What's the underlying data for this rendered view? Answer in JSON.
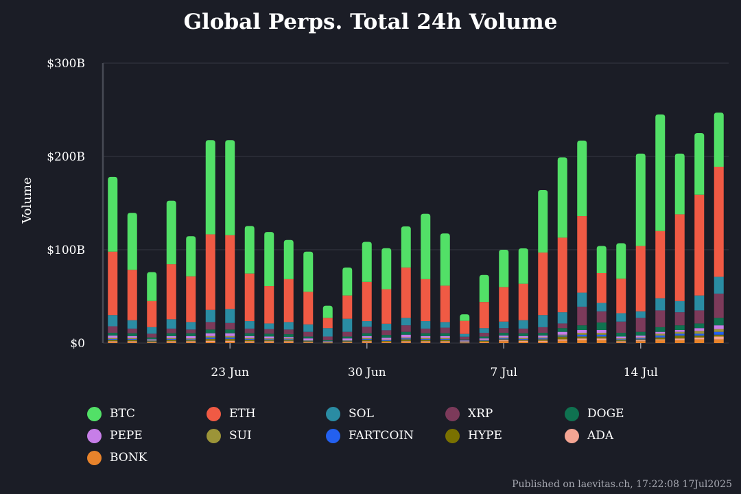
{
  "title": "Global Perps. Total 24h Volume",
  "footer": "Published on laevitas.ch, 17:22:08 17Jul2025",
  "chart_data": {
    "type": "bar",
    "stacked": true,
    "title": "Global Perps. Total 24h Volume",
    "xlabel": "",
    "ylabel": "Volume",
    "ylim": [
      0,
      300
    ],
    "y_unit": "billion USD",
    "y_ticks": [
      0,
      100,
      200,
      300
    ],
    "y_tick_labels": [
      "$0",
      "$100B",
      "$200B",
      "$300B"
    ],
    "grid": true,
    "legend_position": "bottom",
    "categories": [
      "2025-06-16",
      "2025-06-17",
      "2025-06-18",
      "2025-06-19",
      "2025-06-20",
      "2025-06-21",
      "2025-06-22",
      "2025-06-23",
      "2025-06-24",
      "2025-06-25",
      "2025-06-26",
      "2025-06-27",
      "2025-06-28",
      "2025-06-29",
      "2025-06-30",
      "2025-07-01",
      "2025-07-02",
      "2025-07-03",
      "2025-07-04",
      "2025-07-05",
      "2025-07-06",
      "2025-07-07",
      "2025-07-08",
      "2025-07-09",
      "2025-07-10",
      "2025-07-11",
      "2025-07-12",
      "2025-07-13",
      "2025-07-14",
      "2025-07-15",
      "2025-07-16",
      "2025-07-17"
    ],
    "x_ticks": [
      {
        "index": 6,
        "label": "23 Jun"
      },
      {
        "index": 13,
        "label": "30 Jun"
      },
      {
        "index": 20,
        "label": "7 Jul"
      },
      {
        "index": 27,
        "label": "14 Jul"
      }
    ],
    "series": [
      {
        "name": "BONK",
        "color": "#e8832b",
        "values": [
          1,
          1,
          0.5,
          1,
          1,
          1.5,
          1.5,
          1,
          1,
          1,
          0.5,
          0.3,
          0.5,
          1,
          0.7,
          1,
          1,
          1,
          0.3,
          1,
          2,
          1.5,
          1.5,
          2.5,
          3,
          3,
          1,
          2,
          3,
          3,
          4,
          4
        ]
      },
      {
        "name": "ADA",
        "color": "#f4a593",
        "values": [
          1,
          1,
          0.5,
          1,
          1,
          1,
          1,
          1,
          1,
          1,
          0.5,
          0.3,
          0.5,
          1,
          0.6,
          1,
          1,
          1,
          0.3,
          0.5,
          1,
          1,
          1,
          1.5,
          2,
          2,
          1,
          1,
          1,
          2,
          2,
          3
        ]
      },
      {
        "name": "HYPE",
        "color": "#7a7100",
        "values": [
          1.5,
          1.5,
          1,
          1.5,
          1,
          2,
          2,
          1.5,
          1,
          1,
          1,
          0.3,
          1,
          1.5,
          1,
          2,
          1.5,
          1.5,
          0.5,
          1,
          1,
          1,
          1.5,
          3,
          2,
          2,
          1,
          1,
          2,
          3,
          2,
          2
        ]
      },
      {
        "name": "FARTCOIN",
        "color": "#2360f0",
        "values": [
          1,
          1,
          0.5,
          1,
          1,
          1.5,
          1.5,
          1,
          1,
          1,
          0.5,
          0.3,
          0.5,
          1,
          0.7,
          1,
          1,
          1,
          0.4,
          0.5,
          1,
          1,
          1,
          1,
          2,
          2,
          1,
          1,
          2,
          2,
          2,
          3
        ]
      },
      {
        "name": "SUI",
        "color": "#9c9438",
        "values": [
          1,
          1,
          0.5,
          1,
          1,
          1.5,
          1.5,
          1,
          1,
          1,
          0.5,
          0.3,
          0.5,
          1,
          0.7,
          1,
          1,
          1,
          0.3,
          0.5,
          1,
          1,
          1,
          1,
          2,
          2,
          1,
          1,
          2,
          2,
          3,
          3
        ]
      },
      {
        "name": "PEPE",
        "color": "#c77ee8",
        "values": [
          2.5,
          2,
          1,
          2,
          2.5,
          3,
          3,
          2,
          2,
          1.5,
          2,
          0.5,
          2,
          2,
          2,
          3,
          2,
          2,
          1,
          1.5,
          2,
          2,
          2,
          3,
          3,
          3,
          2,
          2,
          2,
          2,
          3,
          4
        ]
      },
      {
        "name": "DOGE",
        "color": "#0f7250",
        "values": [
          3,
          3,
          2,
          3,
          3,
          4,
          4,
          3,
          3,
          3,
          2,
          1,
          2,
          3,
          3,
          3,
          3,
          3,
          1,
          2,
          3,
          3,
          3,
          4,
          5,
          8,
          4,
          4,
          5,
          5,
          5,
          8
        ]
      },
      {
        "name": "XRP",
        "color": "#7c3a5a",
        "values": [
          7,
          5,
          4,
          5,
          4,
          8,
          7,
          5,
          5,
          5,
          5,
          4,
          5,
          7,
          5,
          7,
          5,
          6,
          3,
          4,
          5,
          5,
          6,
          5,
          20,
          12,
          12,
          15,
          18,
          14,
          14,
          26
        ]
      },
      {
        "name": "SOL",
        "color": "#2a8ca3",
        "values": [
          12,
          9,
          7,
          10,
          8,
          13,
          15,
          8,
          6,
          8,
          8,
          9,
          14,
          6,
          7,
          8,
          8,
          6,
          3,
          5,
          7,
          9,
          13,
          12,
          15,
          9,
          9,
          7,
          13,
          12,
          16,
          18
        ]
      },
      {
        "name": "ETH",
        "color": "#f05a44",
        "values": [
          68,
          54,
          28,
          59,
          49,
          81,
          79,
          51,
          40,
          46,
          35,
          11,
          25,
          42,
          37,
          54,
          45,
          39,
          14,
          28,
          37,
          39,
          67,
          80,
          82,
          32,
          37,
          70,
          72,
          93,
          108,
          118
        ]
      },
      {
        "name": "BTC",
        "color": "#52e067",
        "values": [
          80,
          61,
          31,
          68,
          43,
          101,
          102,
          51,
          58,
          42,
          43,
          13,
          30,
          43,
          44,
          44,
          70,
          56,
          7,
          29,
          40,
          38,
          67,
          86,
          81,
          29,
          38,
          99,
          125,
          65,
          66,
          58
        ]
      }
    ]
  },
  "legend": [
    {
      "name": "BTC",
      "color": "#52e067"
    },
    {
      "name": "ETH",
      "color": "#f05a44"
    },
    {
      "name": "SOL",
      "color": "#2a8ca3"
    },
    {
      "name": "XRP",
      "color": "#7c3a5a"
    },
    {
      "name": "DOGE",
      "color": "#0f7250"
    },
    {
      "name": "PEPE",
      "color": "#c77ee8"
    },
    {
      "name": "SUI",
      "color": "#9c9438"
    },
    {
      "name": "FARTCOIN",
      "color": "#2360f0"
    },
    {
      "name": "HYPE",
      "color": "#7a7100"
    },
    {
      "name": "ADA",
      "color": "#f4a593"
    },
    {
      "name": "BONK",
      "color": "#e8832b"
    }
  ]
}
